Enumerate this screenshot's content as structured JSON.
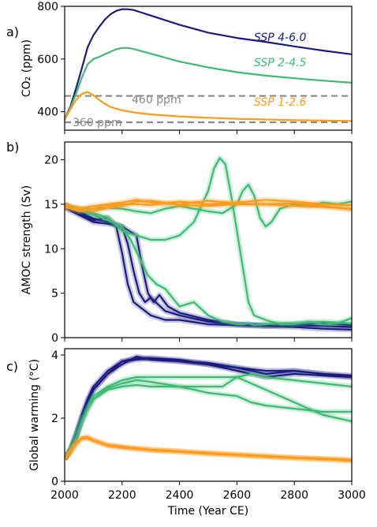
{
  "chart_data": [
    {
      "panel": "a)",
      "type": "line",
      "ylabel": "CO₂ (ppm)",
      "xlabel": "",
      "xlim": [
        2000,
        3000
      ],
      "ylim": [
        330,
        800
      ],
      "yticks": [
        400,
        600,
        800
      ],
      "xticks": [
        2000,
        2200,
        2400,
        2600,
        2800,
        3000
      ],
      "grid": false,
      "series": [
        {
          "name": "SSP 4-6.0",
          "color": "#1a1a80",
          "x": [
            2000,
            2020,
            2040,
            2060,
            2080,
            2100,
            2120,
            2140,
            2160,
            2180,
            2200,
            2220,
            2240,
            2260,
            2300,
            2400,
            2500,
            2600,
            2700,
            2800,
            2900,
            3000
          ],
          "values": [
            370,
            420,
            490,
            565,
            645,
            690,
            722,
            750,
            770,
            783,
            789,
            789,
            786,
            779,
            765,
            730,
            700,
            680,
            665,
            648,
            632,
            618
          ]
        },
        {
          "name": "SSP 2-4.5",
          "color": "#3dba74",
          "x": [
            2000,
            2020,
            2040,
            2060,
            2080,
            2100,
            2120,
            2140,
            2160,
            2180,
            2200,
            2220,
            2240,
            2260,
            2300,
            2400,
            2500,
            2600,
            2700,
            2800,
            2900,
            3000
          ],
          "values": [
            370,
            415,
            470,
            530,
            580,
            600,
            608,
            618,
            628,
            637,
            642,
            642,
            638,
            632,
            620,
            590,
            568,
            550,
            537,
            527,
            518,
            510
          ]
        },
        {
          "name": "SSP 1-2.6",
          "color": "#ff9a1a",
          "x": [
            2000,
            2020,
            2040,
            2060,
            2080,
            2100,
            2120,
            2140,
            2160,
            2200,
            2250,
            2300,
            2400,
            2500,
            2600,
            2800,
            3000
          ],
          "values": [
            370,
            410,
            445,
            468,
            475,
            463,
            445,
            430,
            418,
            405,
            396,
            390,
            382,
            377,
            373,
            368,
            365
          ]
        }
      ],
      "reference_lines": [
        {
          "label": "460 ppm",
          "y": 460,
          "color": "#888888",
          "style": "dashed"
        },
        {
          "label": "360 ppm",
          "y": 360,
          "color": "#888888",
          "style": "dashed"
        }
      ]
    },
    {
      "panel": "b)",
      "type": "line",
      "ylabel": "AMOC strength (Sv)",
      "xlabel": "",
      "xlim": [
        2000,
        3000
      ],
      "ylim": [
        0,
        22
      ],
      "yticks": [
        0,
        5,
        10,
        15,
        20
      ],
      "xticks": [
        2000,
        2200,
        2400,
        2600,
        2800,
        3000
      ],
      "grid": false,
      "series": [
        {
          "name": "SSP 4-6.0 run 1",
          "color": "#1a1a80",
          "x": [
            2000,
            2050,
            2100,
            2150,
            2180,
            2200,
            2220,
            2240,
            2260,
            2300,
            2350,
            2400,
            2500,
            2600,
            2700,
            2800,
            2900,
            3000
          ],
          "values": [
            14.8,
            14.0,
            13.2,
            13.5,
            12.5,
            9.5,
            6.0,
            4.0,
            3.5,
            2.5,
            2.0,
            2.0,
            1.5,
            1.4,
            1.3,
            1.4,
            1.3,
            1.2
          ]
        },
        {
          "name": "SSP 4-6.0 run 2",
          "color": "#1a1a80",
          "x": [
            2000,
            2050,
            2100,
            2150,
            2200,
            2220,
            2240,
            2260,
            2280,
            2300,
            2350,
            2400,
            2500,
            2600,
            2700,
            2800,
            2900,
            3000
          ],
          "values": [
            15.0,
            14.2,
            13.4,
            13.0,
            12.5,
            10.5,
            7.5,
            5.0,
            4.0,
            4.5,
            3.0,
            2.5,
            1.8,
            1.5,
            1.4,
            1.5,
            1.6,
            1.4
          ]
        },
        {
          "name": "SSP 4-6.0 run 3",
          "color": "#1a1a80",
          "x": [
            2000,
            2050,
            2100,
            2150,
            2200,
            2250,
            2270,
            2290,
            2310,
            2330,
            2360,
            2400,
            2500,
            2600,
            2700,
            2800,
            2900,
            3000
          ],
          "values": [
            14.6,
            13.8,
            13.0,
            12.8,
            12.5,
            11.5,
            8.0,
            5.0,
            4.0,
            4.8,
            3.5,
            2.8,
            2.0,
            1.5,
            1.3,
            1.2,
            1.0,
            0.9
          ]
        },
        {
          "name": "SSP 2-4.5 run 1",
          "color": "#3dba74",
          "x": [
            2000,
            2050,
            2100,
            2150,
            2200,
            2250,
            2300,
            2350,
            2400,
            2450,
            2500,
            2520,
            2540,
            2560,
            2580,
            2600,
            2620,
            2640,
            2660,
            2700,
            2750,
            2800,
            2850,
            2900,
            2950,
            3000
          ],
          "values": [
            14.8,
            14.5,
            14.0,
            13.5,
            12.0,
            11.5,
            11.0,
            11.0,
            11.5,
            13.0,
            16.5,
            19.0,
            20.2,
            19.5,
            16.0,
            12.0,
            8.0,
            4.0,
            2.5,
            2.0,
            1.5,
            1.5,
            1.8,
            1.5,
            1.6,
            2.2
          ]
        },
        {
          "name": "SSP 2-4.5 run 2",
          "color": "#3dba74",
          "x": [
            2000,
            2050,
            2100,
            2150,
            2200,
            2230,
            2260,
            2290,
            2320,
            2350,
            2400,
            2450,
            2500,
            2550,
            2600,
            2620,
            2640,
            2660,
            2700,
            2750,
            2800,
            2900,
            3000
          ],
          "values": [
            14.7,
            14.3,
            13.8,
            13.2,
            12.5,
            11.0,
            9.0,
            7.0,
            6.0,
            5.5,
            3.5,
            4.0,
            2.5,
            1.8,
            1.5,
            1.5,
            1.6,
            1.4,
            1.5,
            1.6,
            1.6,
            1.8,
            1.6
          ]
        },
        {
          "name": "SSP 2-4.5 run 3",
          "color": "#3dba74",
          "x": [
            2000,
            2050,
            2100,
            2150,
            2200,
            2250,
            2300,
            2350,
            2400,
            2450,
            2500,
            2550,
            2600,
            2620,
            2640,
            2660,
            2680,
            2700,
            2720,
            2750,
            2800,
            2850,
            2900,
            2950,
            3000
          ],
          "values": [
            14.9,
            14.4,
            14.5,
            14.6,
            14.5,
            14.2,
            14.0,
            14.5,
            14.8,
            14.5,
            14.2,
            14.0,
            15.0,
            16.5,
            17.2,
            16.0,
            13.5,
            12.5,
            13.0,
            14.5,
            15.0,
            14.8,
            15.2,
            15.0,
            15.3
          ]
        },
        {
          "name": "SSP 1-2.6 run 1",
          "color": "#ff9a1a",
          "x": [
            2000,
            2050,
            2100,
            2150,
            2200,
            2250,
            2300,
            2400,
            2500,
            2600,
            2700,
            2800,
            2900,
            3000
          ],
          "values": [
            14.6,
            14.5,
            14.8,
            15.0,
            15.2,
            15.5,
            15.2,
            15.0,
            15.4,
            15.1,
            15.0,
            14.8,
            14.7,
            14.5
          ]
        },
        {
          "name": "SSP 1-2.6 run 2",
          "color": "#ff9a1a",
          "x": [
            2000,
            2050,
            2100,
            2150,
            2200,
            2250,
            2300,
            2400,
            2500,
            2600,
            2700,
            2800,
            2900,
            3000
          ],
          "values": [
            14.8,
            14.2,
            14.5,
            14.8,
            15.0,
            15.0,
            14.9,
            15.3,
            15.0,
            15.2,
            15.5,
            15.3,
            15.0,
            14.9
          ]
        },
        {
          "name": "SSP 1-2.6 run 3",
          "color": "#ff9a1a",
          "x": [
            2000,
            2050,
            2100,
            2150,
            2200,
            2250,
            2300,
            2400,
            2500,
            2600,
            2700,
            2800,
            2900,
            3000
          ],
          "values": [
            15.0,
            14.6,
            14.2,
            14.6,
            14.8,
            15.3,
            15.4,
            14.9,
            14.8,
            15.0,
            15.0,
            15.1,
            14.8,
            14.4
          ]
        }
      ]
    },
    {
      "panel": "c)",
      "type": "line",
      "ylabel": "Global warming (°C)",
      "xlabel": "Time (Year CE)",
      "xlim": [
        2000,
        3000
      ],
      "ylim": [
        0,
        4.2
      ],
      "yticks": [
        0,
        2,
        4
      ],
      "xticks": [
        2000,
        2200,
        2400,
        2600,
        2800,
        3000
      ],
      "grid": false,
      "series": [
        {
          "name": "SSP 4-6.0 run 1",
          "color": "#1a1a80",
          "x": [
            2000,
            2020,
            2040,
            2060,
            2080,
            2100,
            2150,
            2200,
            2250,
            2300,
            2400,
            2500,
            2600,
            2700,
            2800,
            2900,
            3000
          ],
          "values": [
            0.7,
            1.0,
            1.5,
            2.1,
            2.6,
            3.0,
            3.5,
            3.8,
            3.9,
            3.9,
            3.8,
            3.7,
            3.6,
            3.5,
            3.5,
            3.4,
            3.3
          ]
        },
        {
          "name": "SSP 4-6.0 run 2",
          "color": "#1a1a80",
          "x": [
            2000,
            2020,
            2040,
            2060,
            2080,
            2100,
            2150,
            2200,
            2250,
            2300,
            2400,
            2500,
            2600,
            2700,
            2800,
            2900,
            3000
          ],
          "values": [
            0.7,
            1.0,
            1.5,
            2.0,
            2.5,
            2.9,
            3.4,
            3.7,
            3.95,
            3.85,
            3.8,
            3.75,
            3.6,
            3.4,
            3.5,
            3.4,
            3.35
          ]
        },
        {
          "name": "SSP 4-6.0 run 3",
          "color": "#1a1a80",
          "x": [
            2000,
            2020,
            2040,
            2060,
            2080,
            2100,
            2150,
            2200,
            2250,
            2300,
            2400,
            2500,
            2600,
            2700,
            2800,
            2900,
            3000
          ],
          "values": [
            0.7,
            1.0,
            1.4,
            2.0,
            2.5,
            2.9,
            3.4,
            3.8,
            3.85,
            3.9,
            3.85,
            3.7,
            3.5,
            3.3,
            3.4,
            3.35,
            3.3
          ]
        },
        {
          "name": "SSP 2-4.5 run 1",
          "color": "#3dba74",
          "x": [
            2000,
            2020,
            2040,
            2060,
            2080,
            2100,
            2150,
            2200,
            2250,
            2300,
            2400,
            2500,
            2550,
            2600,
            2650,
            2700,
            2800,
            2900,
            3000
          ],
          "values": [
            0.7,
            1.0,
            1.4,
            1.9,
            2.3,
            2.6,
            2.9,
            3.0,
            3.05,
            3.0,
            3.0,
            3.0,
            3.0,
            3.3,
            3.4,
            3.3,
            3.2,
            3.1,
            3.0
          ]
        },
        {
          "name": "SSP 2-4.5 run 2",
          "color": "#3dba74",
          "x": [
            2000,
            2020,
            2040,
            2060,
            2080,
            2100,
            2150,
            2200,
            2250,
            2300,
            2400,
            2500,
            2600,
            2650,
            2700,
            2800,
            2900,
            3000
          ],
          "values": [
            0.7,
            1.0,
            1.4,
            1.9,
            2.3,
            2.6,
            2.95,
            3.1,
            3.2,
            3.15,
            3.0,
            2.8,
            2.7,
            2.5,
            2.4,
            2.3,
            2.2,
            2.2
          ]
        },
        {
          "name": "SSP 2-4.5 run 3",
          "color": "#3dba74",
          "x": [
            2000,
            2020,
            2040,
            2060,
            2080,
            2100,
            2150,
            2200,
            2250,
            2300,
            2400,
            2500,
            2600,
            2700,
            2800,
            2900,
            3000
          ],
          "values": [
            0.7,
            1.0,
            1.4,
            1.9,
            2.3,
            2.7,
            3.0,
            3.2,
            3.3,
            3.3,
            3.3,
            3.3,
            3.3,
            2.9,
            2.5,
            2.1,
            1.9
          ]
        },
        {
          "name": "SSP 1-2.6 run 1",
          "color": "#ff9a1a",
          "x": [
            2000,
            2020,
            2040,
            2060,
            2080,
            2100,
            2150,
            2200,
            2300,
            2400,
            2500,
            2600,
            2700,
            2800,
            2900,
            3000
          ],
          "values": [
            0.7,
            0.95,
            1.2,
            1.38,
            1.4,
            1.3,
            1.15,
            1.1,
            1.0,
            0.95,
            0.9,
            0.85,
            0.8,
            0.75,
            0.72,
            0.68
          ]
        },
        {
          "name": "SSP 1-2.6 run 2",
          "color": "#ff9a1a",
          "x": [
            2000,
            2020,
            2040,
            2060,
            2080,
            2100,
            2150,
            2200,
            2300,
            2400,
            2500,
            2600,
            2700,
            2800,
            2900,
            3000
          ],
          "values": [
            0.7,
            0.9,
            1.18,
            1.35,
            1.36,
            1.28,
            1.15,
            1.08,
            1.0,
            0.95,
            0.88,
            0.84,
            0.78,
            0.74,
            0.7,
            0.65
          ]
        },
        {
          "name": "SSP 1-2.6 run 3",
          "color": "#ff9a1a",
          "x": [
            2000,
            2020,
            2040,
            2060,
            2080,
            2100,
            2150,
            2200,
            2300,
            2400,
            2500,
            2600,
            2700,
            2800,
            2900,
            3000
          ],
          "values": [
            0.7,
            0.92,
            1.2,
            1.36,
            1.38,
            1.3,
            1.12,
            1.06,
            0.98,
            0.93,
            0.87,
            0.82,
            0.78,
            0.73,
            0.7,
            0.66
          ]
        }
      ]
    }
  ]
}
